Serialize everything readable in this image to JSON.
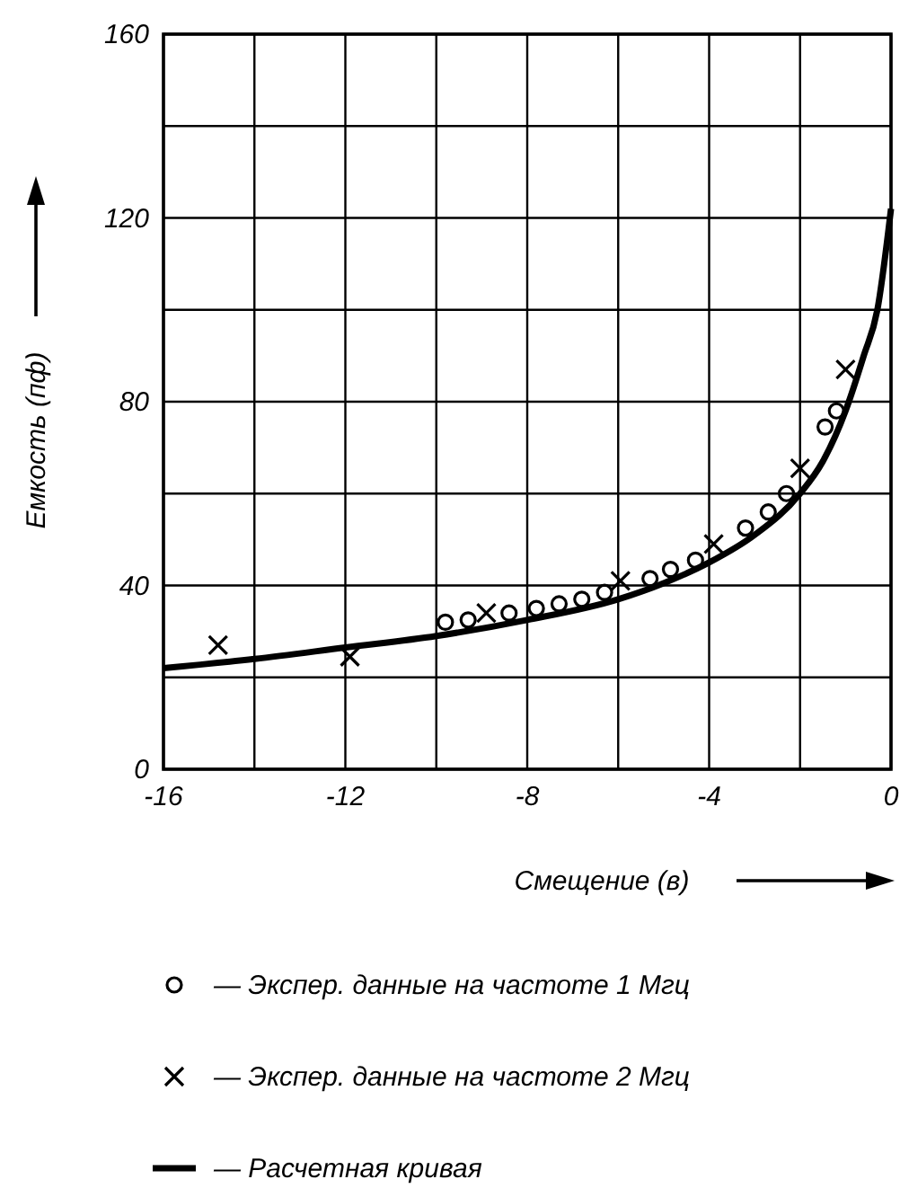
{
  "chart_data": {
    "type": "scatter",
    "xlabel": "Смещение (в)",
    "ylabel": "Емкость (пф)",
    "xlim": [
      -16,
      0
    ],
    "ylim": [
      0,
      160
    ],
    "xticks": [
      -16,
      {
        "value": -14,
        "label": null
      },
      -12,
      {
        "value": -10,
        "label": null
      },
      -8,
      {
        "value": -6,
        "label": null
      },
      -4,
      {
        "value": -2,
        "label": null
      },
      0
    ],
    "yticks": [
      0,
      {
        "value": 20,
        "label": null
      },
      40,
      {
        "value": 60,
        "label": null
      },
      80,
      {
        "value": 100,
        "label": null
      },
      120,
      {
        "value": 140,
        "label": null
      },
      160
    ],
    "grid": true,
    "legend": "bottom",
    "series": [
      {
        "name": "— Экспер. данные на частоте 1 Мгц",
        "marker": "circle",
        "color": "#000000",
        "x": [
          -9.8,
          -9.3,
          -8.4,
          -7.8,
          -7.3,
          -6.8,
          -6.3,
          -5.3,
          -4.85,
          -4.3,
          -3.2,
          -2.7,
          -2.3,
          -1.45,
          -1.2
        ],
        "values": [
          32,
          32.5,
          34,
          35,
          36,
          37,
          38.5,
          41.5,
          43.5,
          45.5,
          52.5,
          56,
          60,
          74.5,
          78
        ]
      },
      {
        "name": "— Экспер. данные на частоте 2 Мгц",
        "marker": "cross",
        "color": "#000000",
        "x": [
          -14.8,
          -11.9,
          -8.9,
          -5.95,
          -3.9,
          -2.0,
          -1.0
        ],
        "values": [
          27,
          24.5,
          34,
          41,
          49,
          65.5,
          87
        ]
      },
      {
        "name": "— Расчетная кривая",
        "type": "line",
        "marker": "none",
        "line_style": "solid",
        "color": "#000000",
        "x": [
          -16,
          -14,
          -12,
          -10,
          -8,
          -6,
          -5,
          -4,
          -3,
          -2,
          -1.5,
          -1,
          -0.6,
          -0.3,
          0
        ],
        "values": [
          22,
          24,
          26.5,
          29,
          32.5,
          37,
          40.5,
          45,
          51,
          60,
          67,
          78,
          90,
          100,
          122
        ]
      }
    ]
  }
}
